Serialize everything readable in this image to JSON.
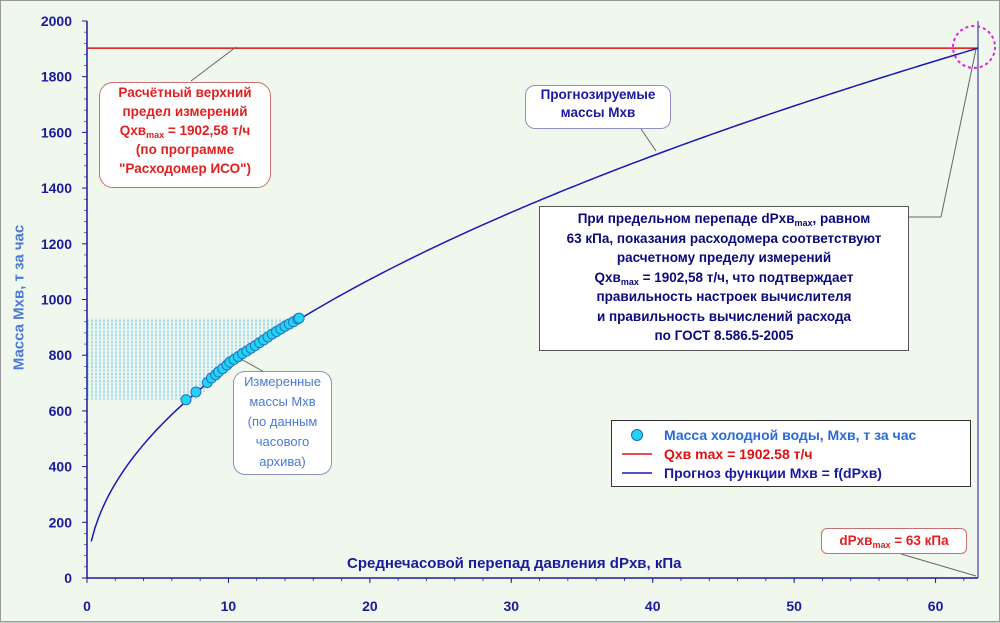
{
  "chart_data": {
    "type": "scatter",
    "xlabel": "Среднечасовой перепад давления dPхв, кПа",
    "ylabel": "Масса Мхв, т за час",
    "xlim": [
      0,
      63
    ],
    "ylim": [
      0,
      2000
    ],
    "xticks": [
      0,
      10,
      20,
      30,
      40,
      50,
      60
    ],
    "yticks": [
      0,
      200,
      400,
      600,
      800,
      1000,
      1200,
      1400,
      1600,
      1800,
      2000
    ],
    "grid": false,
    "legend_position": "bottom-right",
    "colors": {
      "measured": "#22d4ee",
      "limit": "#e01010",
      "forecast": "#1818b4"
    },
    "series": [
      {
        "name": "Масса холодной воды, Мхв, т за час",
        "kind": "scatter",
        "points": [
          [
            7.0,
            640
          ],
          [
            7.7,
            668
          ],
          [
            8.5,
            702
          ],
          [
            8.8,
            718
          ],
          [
            9.1,
            730
          ],
          [
            9.3,
            740
          ],
          [
            9.6,
            752
          ],
          [
            9.9,
            765
          ],
          [
            10.1,
            775
          ],
          [
            10.4,
            785
          ],
          [
            10.7,
            795
          ],
          [
            11.0,
            806
          ],
          [
            11.3,
            815
          ],
          [
            11.6,
            825
          ],
          [
            11.9,
            835
          ],
          [
            12.2,
            845
          ],
          [
            12.5,
            855
          ],
          [
            12.8,
            866
          ],
          [
            13.1,
            876
          ],
          [
            13.4,
            885
          ],
          [
            13.7,
            894
          ],
          [
            14.0,
            904
          ],
          [
            14.3,
            912
          ],
          [
            14.6,
            920
          ],
          [
            14.9,
            930
          ],
          [
            15.0,
            933
          ]
        ]
      },
      {
        "name": "Qхв max = 1902.58 т/ч",
        "kind": "hline",
        "y": 1902.58
      },
      {
        "name": "Прогноз функции Мхв = f(dPхв)",
        "kind": "line",
        "formula_coefficient": 239.7,
        "x_range": [
          0.3,
          63
        ]
      }
    ],
    "annotations": {
      "limit": {
        "line1": "Расчётный верхний",
        "line2": "предел измерений",
        "line3_prefix": "Qхв",
        "line3_sub": "max",
        "line3_suffix": " = 1902,58 т/ч",
        "line4": "(по программе",
        "line5": "\"Расходомер ИСО\")"
      },
      "forecast": {
        "line1": "Прогнозируемые",
        "line2": "массы Мхв"
      },
      "measured": {
        "line1": "Измеренные",
        "line2": "массы Мхв",
        "line3": "(по данным",
        "line4": "часового",
        "line5": "архива)"
      },
      "main": {
        "l1_prefix": "При предельном перепаде dPхв",
        "l1_sub": "max",
        "l1_suffix": ", равном",
        "l2": "63 кПа, показания расходомера соответствуют",
        "l3": "расчетному пределу измерений",
        "l4_prefix": "Qхв",
        "l4_sub": "max",
        "l4_suffix": " = 1902,58 т/ч, что подтверждает",
        "l5": "правильность настроек вычислителя",
        "l6": "и правильность вычислений расхода",
        "l7": "по ГОСТ 8.586.5-2005"
      },
      "dp": {
        "prefix": "dPхв",
        "sub": "max",
        "suffix": " = 63 кПа"
      }
    }
  }
}
